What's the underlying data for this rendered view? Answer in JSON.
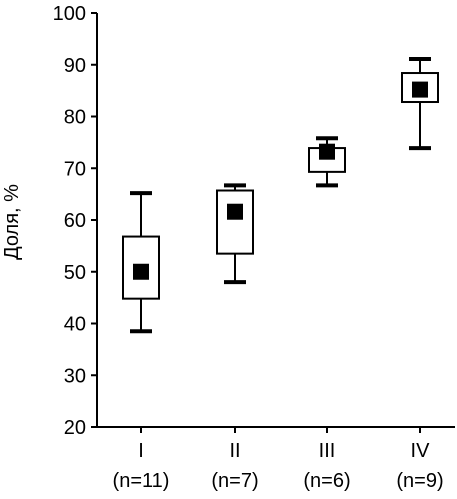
{
  "chart_data": {
    "type": "box",
    "ylabel": "Доля, %",
    "ylim": [
      20,
      100
    ],
    "yticks": [
      20,
      30,
      40,
      50,
      60,
      70,
      80,
      90,
      100
    ],
    "grid": false,
    "categories": [
      {
        "label": "I",
        "sublabel": "(n=11)"
      },
      {
        "label": "II",
        "sublabel": "(n=7)"
      },
      {
        "label": "III",
        "sublabel": "(n=6)"
      },
      {
        "label": "IV",
        "sublabel": "(n=9)"
      }
    ],
    "series": [
      {
        "min": 38.5,
        "q1": 44.8,
        "median": 50.0,
        "q3": 56.8,
        "max": 65.2
      },
      {
        "min": 48.0,
        "q1": 53.5,
        "median": 61.6,
        "q3": 65.7,
        "max": 66.7
      },
      {
        "min": 66.7,
        "q1": 69.3,
        "median": 73.2,
        "q3": 73.9,
        "max": 75.8
      },
      {
        "min": 73.9,
        "q1": 82.8,
        "median": 85.2,
        "q3": 88.4,
        "max": 91.1
      }
    ]
  }
}
